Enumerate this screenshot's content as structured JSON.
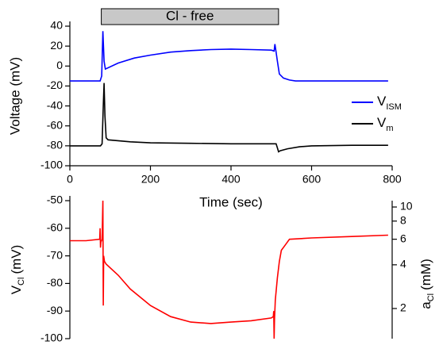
{
  "chart_data": [
    {
      "type": "line",
      "ylabel": "Voltage (mV)",
      "xlabel": "Time (sec)",
      "annotation": {
        "text": "Cl - free",
        "xrange": [
          78,
          518
        ]
      },
      "xlim": [
        0,
        800
      ],
      "xticks": [
        0,
        200,
        400,
        600,
        800
      ],
      "ylim": [
        -100,
        40
      ],
      "yticks": [
        -100,
        -80,
        -60,
        -40,
        -20,
        0,
        20,
        40
      ],
      "legend": "right",
      "series": [
        {
          "name": "V",
          "name_sub": "ISM",
          "color": "#0000ff",
          "x": [
            0,
            40,
            75,
            79,
            82,
            85,
            88,
            120,
            160,
            200,
            250,
            300,
            350,
            400,
            450,
            500,
            507,
            509,
            512,
            515,
            520,
            530,
            545,
            560,
            650,
            790
          ],
          "values": [
            -15,
            -15,
            -15,
            -10,
            35,
            5,
            -3,
            3,
            8,
            11,
            14,
            15.5,
            16.5,
            17,
            16.5,
            16,
            15,
            22,
            14,
            5,
            -8,
            -12,
            -14,
            -15,
            -15,
            -15
          ]
        },
        {
          "name": "V",
          "name_sub": "m",
          "color": "#000000",
          "x": [
            0,
            40,
            76,
            80,
            83,
            85,
            87,
            90,
            95,
            150,
            200,
            300,
            400,
            500,
            512,
            515,
            518,
            522,
            540,
            570,
            600,
            700,
            790
          ],
          "values": [
            -80,
            -80,
            -80,
            -78,
            -40,
            -17,
            -50,
            -72,
            -74,
            -76,
            -77,
            -77.5,
            -78,
            -78,
            -78,
            -82,
            -86,
            -85,
            -83,
            -81,
            -80,
            -79.5,
            -79.5
          ]
        }
      ]
    },
    {
      "type": "line",
      "ylabel": {
        "main": "V",
        "sub": "Cl",
        "unit": "(mV)"
      },
      "y2label": {
        "main": "a",
        "sub": "Cl",
        "unit": "(mM)"
      },
      "xlim": [
        0,
        800
      ],
      "ylim": [
        -100,
        -50
      ],
      "yticks": [
        -100,
        -90,
        -80,
        -70,
        -60,
        -50
      ],
      "y2lim": [
        1.24,
        11.06
      ],
      "y2ticks": [
        2,
        4,
        6,
        8,
        10
      ],
      "y2log": true,
      "series": [
        {
          "color": "#ff0000",
          "x": [
            0,
            40,
            74,
            75,
            76,
            77,
            80,
            82,
            83,
            84,
            86,
            90,
            120,
            150,
            200,
            250,
            300,
            350,
            400,
            450,
            500,
            505,
            506,
            507,
            508,
            510,
            515,
            520,
            525,
            535,
            545,
            600,
            700,
            790
          ],
          "values": [
            -64.5,
            -64.5,
            -64,
            -60,
            -67,
            -65,
            -64,
            -50,
            -88,
            -70,
            -72,
            -73,
            -77,
            -82,
            -88,
            -92,
            -94,
            -94.5,
            -94,
            -93.5,
            -92.5,
            -92,
            -90,
            -100,
            -93,
            -86,
            -78,
            -72,
            -68,
            -66,
            -64,
            -63.5,
            -63,
            -62.5
          ]
        }
      ]
    }
  ]
}
